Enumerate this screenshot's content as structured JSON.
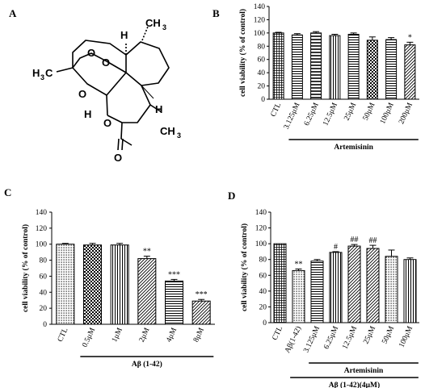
{
  "panels": {
    "A": {
      "letter": "A"
    },
    "B": {
      "letter": "B"
    },
    "C": {
      "letter": "C"
    },
    "D": {
      "letter": "D"
    }
  },
  "molecule": {
    "label_h3c": "H",
    "label_h3c_sub": "3",
    "label_h3c_c": "C",
    "label_ch3_top": "CH",
    "label_ch3_bottom": "CH",
    "label_ch3_sub": "3",
    "label_h": "H",
    "label_o": "O"
  },
  "chart_data": [
    {
      "id": "B",
      "type": "bar",
      "categories": [
        "CTL",
        "3.125μM",
        "6.25μM",
        "12.5μM",
        "25μM",
        "50μM",
        "100μM",
        "200μM"
      ],
      "values": [
        100,
        97,
        100,
        96,
        98,
        89,
        90,
        82
      ],
      "errors": [
        1,
        2,
        2,
        2,
        2,
        5,
        3,
        4
      ],
      "significance": [
        "",
        "",
        "",
        "",
        "",
        "",
        "",
        "*"
      ],
      "ylabel": "cell viability (% of control)",
      "ylim": [
        0,
        140
      ],
      "yticks": [
        0,
        20,
        40,
        60,
        80,
        100,
        120,
        140
      ],
      "groups": [
        {
          "label": "Artemisinin",
          "from": 1,
          "to": 7
        }
      ],
      "patterns": [
        "grid",
        "hstripe",
        "hstripe-wide",
        "vstripe",
        "hstripe",
        "check",
        "hstripe",
        "diag"
      ]
    },
    {
      "id": "C",
      "type": "bar",
      "categories": [
        "CTL",
        "0.5μM",
        "1μM",
        "2μM",
        "4μM",
        "8μM"
      ],
      "values": [
        100,
        99,
        99,
        82,
        54,
        29
      ],
      "errors": [
        1,
        2,
        2,
        3,
        2,
        2
      ],
      "significance": [
        "",
        "",
        "",
        "**",
        "***",
        "***"
      ],
      "ylabel": "cell viability (% of control)",
      "ylim": [
        0,
        140
      ],
      "yticks": [
        0,
        20,
        40,
        60,
        80,
        100,
        120,
        140
      ],
      "groups": [
        {
          "label": "Aβ (1-42)",
          "from": 1,
          "to": 5
        }
      ],
      "patterns": [
        "dots",
        "check",
        "vstripe",
        "diag",
        "hstripe",
        "diag"
      ]
    },
    {
      "id": "D",
      "type": "bar",
      "categories": [
        "CTL",
        "Aβ(1-42)",
        "3.125μM",
        "6.25μM",
        "12.5μM",
        "25μM",
        "50μM",
        "100μM"
      ],
      "values": [
        100,
        66,
        78,
        89,
        97,
        94,
        84,
        80
      ],
      "errors": [
        0,
        2,
        2,
        1,
        2,
        4,
        8,
        2
      ],
      "significance": [
        "",
        "**",
        "",
        "#",
        "##",
        "##",
        "",
        ""
      ],
      "ylabel": "cell viability (% of control)",
      "ylim": [
        0,
        140
      ],
      "yticks": [
        0,
        20,
        40,
        60,
        80,
        100,
        120,
        140
      ],
      "groups": [
        {
          "label": "Artemisinin",
          "from": 2,
          "to": 7
        },
        {
          "label": "Aβ (1-42)(4μM)",
          "from": 1,
          "to": 7
        }
      ],
      "patterns": [
        "grid",
        "dots",
        "hstripe",
        "vstripe",
        "diag",
        "diag",
        "dots",
        "vstripe"
      ]
    }
  ]
}
